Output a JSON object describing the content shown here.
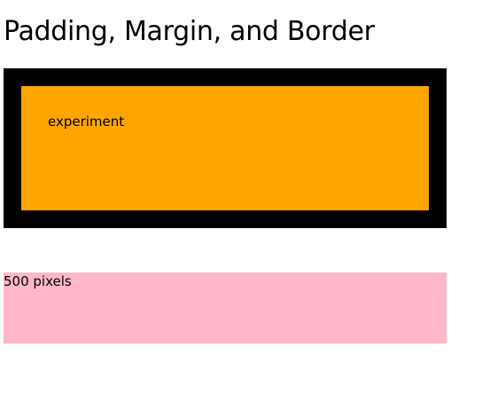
{
  "page": {
    "title": "Padding, Margin, and Border"
  },
  "experiment_box": {
    "text": "experiment",
    "background_color": "#ffa500",
    "border_color": "#000000"
  },
  "width_box": {
    "text": "500 pixels",
    "background_color": "#ffb6c8"
  }
}
